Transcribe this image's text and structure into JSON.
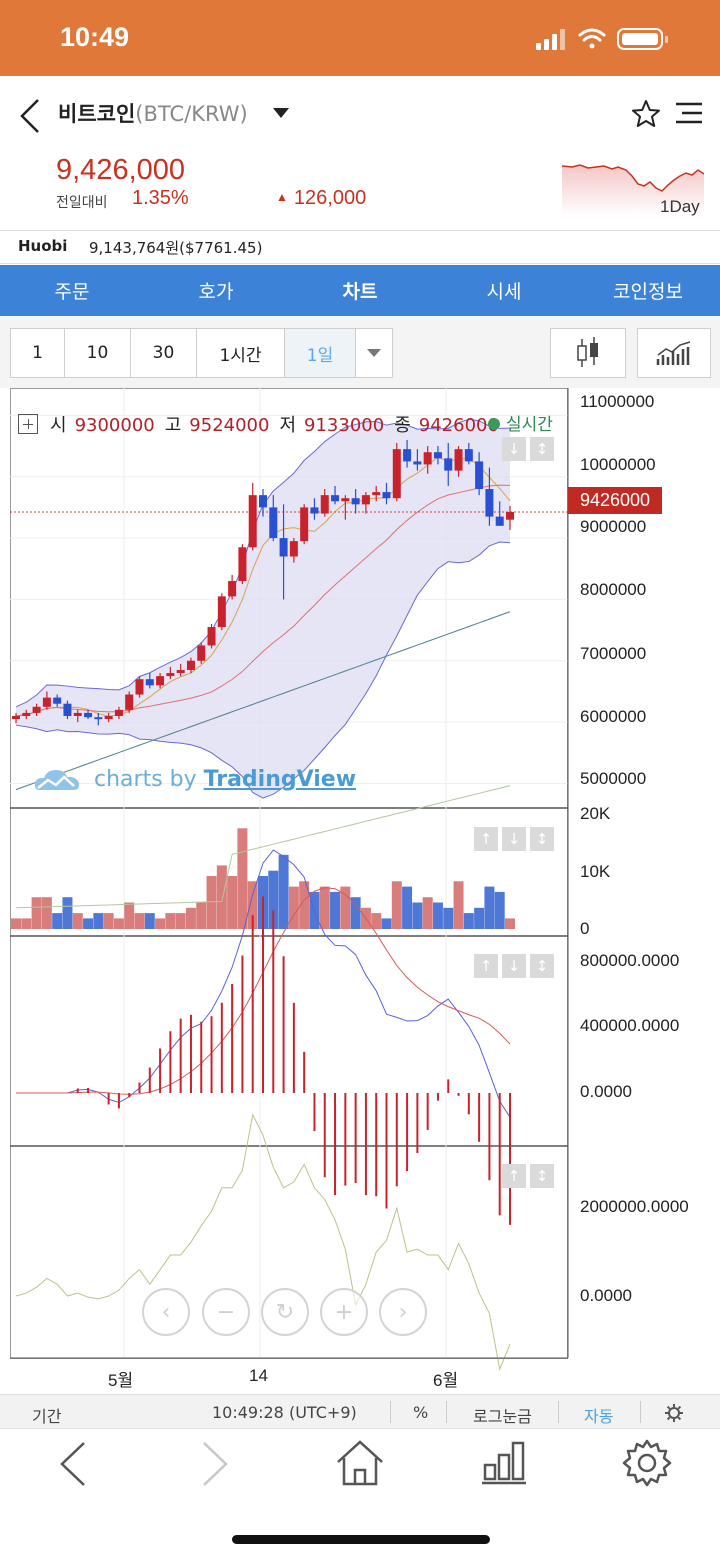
{
  "status": {
    "time": "10:49"
  },
  "header": {
    "coin_name": "비트코인",
    "pair": "(BTC/KRW)",
    "price": "9,426,000",
    "change_label": "전일대비",
    "change_pct": "1.35%",
    "change_abs": "126,000",
    "spark_label": "1Day"
  },
  "exchange": {
    "name": "Huobi",
    "price": "9,143,764원($7761.45)"
  },
  "tabs": [
    {
      "label": "주문"
    },
    {
      "label": "호가"
    },
    {
      "label": "차트",
      "active": true
    },
    {
      "label": "시세"
    },
    {
      "label": "코인정보"
    }
  ],
  "intervals": [
    {
      "label": "1"
    },
    {
      "label": "10"
    },
    {
      "label": "30"
    },
    {
      "label": "1시간"
    },
    {
      "label": "1일",
      "active": true
    }
  ],
  "legend": {
    "open_k": "시",
    "open_v": "9300000",
    "high_k": "고",
    "high_v": "9524000",
    "low_k": "저",
    "low_v": "9133000",
    "close_k": "종",
    "close_v": "9426000",
    "realtime": "실시간"
  },
  "watermark": {
    "prefix": "charts by ",
    "brand": "TradingView"
  },
  "price_tag": "9426000",
  "axes": {
    "main_y": [
      "11000000",
      "10000000",
      "9000000",
      "8000000",
      "7000000",
      "6000000",
      "5000000"
    ],
    "vol_y": [
      "20K",
      "10K",
      "0"
    ],
    "macd_y": [
      "800000.0000",
      "400000.0000",
      "0.0000"
    ],
    "osc_y": [
      "2000000.0000",
      "0.0000"
    ],
    "x": [
      "5월",
      "14",
      "6월"
    ]
  },
  "footer": {
    "period": "기간",
    "time": "10:49:28 (UTC+9)",
    "percent": "%",
    "log": "로그눈금",
    "auto": "자동"
  },
  "chart_data": {
    "type": "candlestick",
    "ylim": [
      4600000,
      11300000
    ],
    "candles": [
      [
        6050000,
        6150000,
        5980000,
        6100000
      ],
      [
        6100000,
        6200000,
        6050000,
        6150000
      ],
      [
        6150000,
        6300000,
        6100000,
        6250000
      ],
      [
        6250000,
        6500000,
        6200000,
        6400000
      ],
      [
        6400000,
        6450000,
        6250000,
        6300000
      ],
      [
        6300000,
        6350000,
        6050000,
        6100000
      ],
      [
        6100000,
        6200000,
        6000000,
        6150000
      ],
      [
        6150000,
        6200000,
        6050000,
        6080000
      ],
      [
        6080000,
        6150000,
        5950000,
        6050000
      ],
      [
        6050000,
        6150000,
        6000000,
        6100000
      ],
      [
        6100000,
        6250000,
        6050000,
        6200000
      ],
      [
        6200000,
        6500000,
        6150000,
        6450000
      ],
      [
        6450000,
        6750000,
        6400000,
        6700000
      ],
      [
        6700000,
        6800000,
        6550000,
        6600000
      ],
      [
        6600000,
        6800000,
        6550000,
        6750000
      ],
      [
        6750000,
        6900000,
        6700000,
        6800000
      ],
      [
        6800000,
        6950000,
        6750000,
        6850000
      ],
      [
        6850000,
        7050000,
        6800000,
        7000000
      ],
      [
        7000000,
        7300000,
        6950000,
        7250000
      ],
      [
        7250000,
        7600000,
        7200000,
        7550000
      ],
      [
        7550000,
        8100000,
        7500000,
        8050000
      ],
      [
        8050000,
        8400000,
        8000000,
        8300000
      ],
      [
        8300000,
        8900000,
        8250000,
        8850000
      ],
      [
        8850000,
        9900000,
        8800000,
        9700000
      ],
      [
        9700000,
        9800000,
        9350000,
        9500000
      ],
      [
        9500000,
        9700000,
        8950000,
        9000000
      ],
      [
        9000000,
        9550000,
        8000000,
        8700000
      ],
      [
        8700000,
        9000000,
        8600000,
        8950000
      ],
      [
        8950000,
        9550000,
        8900000,
        9500000
      ],
      [
        9500000,
        9650000,
        9300000,
        9400000
      ],
      [
        9400000,
        9800000,
        9350000,
        9700000
      ],
      [
        9700000,
        9850000,
        9550000,
        9600000
      ],
      [
        9600000,
        9700000,
        9300000,
        9650000
      ],
      [
        9650000,
        9800000,
        9400000,
        9550000
      ],
      [
        9550000,
        9750000,
        9400000,
        9700000
      ],
      [
        9700000,
        9850000,
        9600000,
        9750000
      ],
      [
        9750000,
        9900000,
        9550000,
        9650000
      ],
      [
        9650000,
        10550000,
        9600000,
        10450000
      ],
      [
        10450000,
        10600000,
        10150000,
        10250000
      ],
      [
        10250000,
        10450000,
        10100000,
        10200000
      ],
      [
        10200000,
        10500000,
        10050000,
        10400000
      ],
      [
        10400000,
        10500000,
        10200000,
        10300000
      ],
      [
        10300000,
        10550000,
        9850000,
        10100000
      ],
      [
        10100000,
        10500000,
        10000000,
        10450000
      ],
      [
        10450000,
        10550000,
        10200000,
        10250000
      ],
      [
        10250000,
        10400000,
        9700000,
        9800000
      ],
      [
        9800000,
        10150000,
        9200000,
        9350000
      ],
      [
        9350000,
        9600000,
        9200000,
        9200000
      ],
      [
        9300000,
        9524000,
        9133000,
        9426000
      ]
    ]
  }
}
